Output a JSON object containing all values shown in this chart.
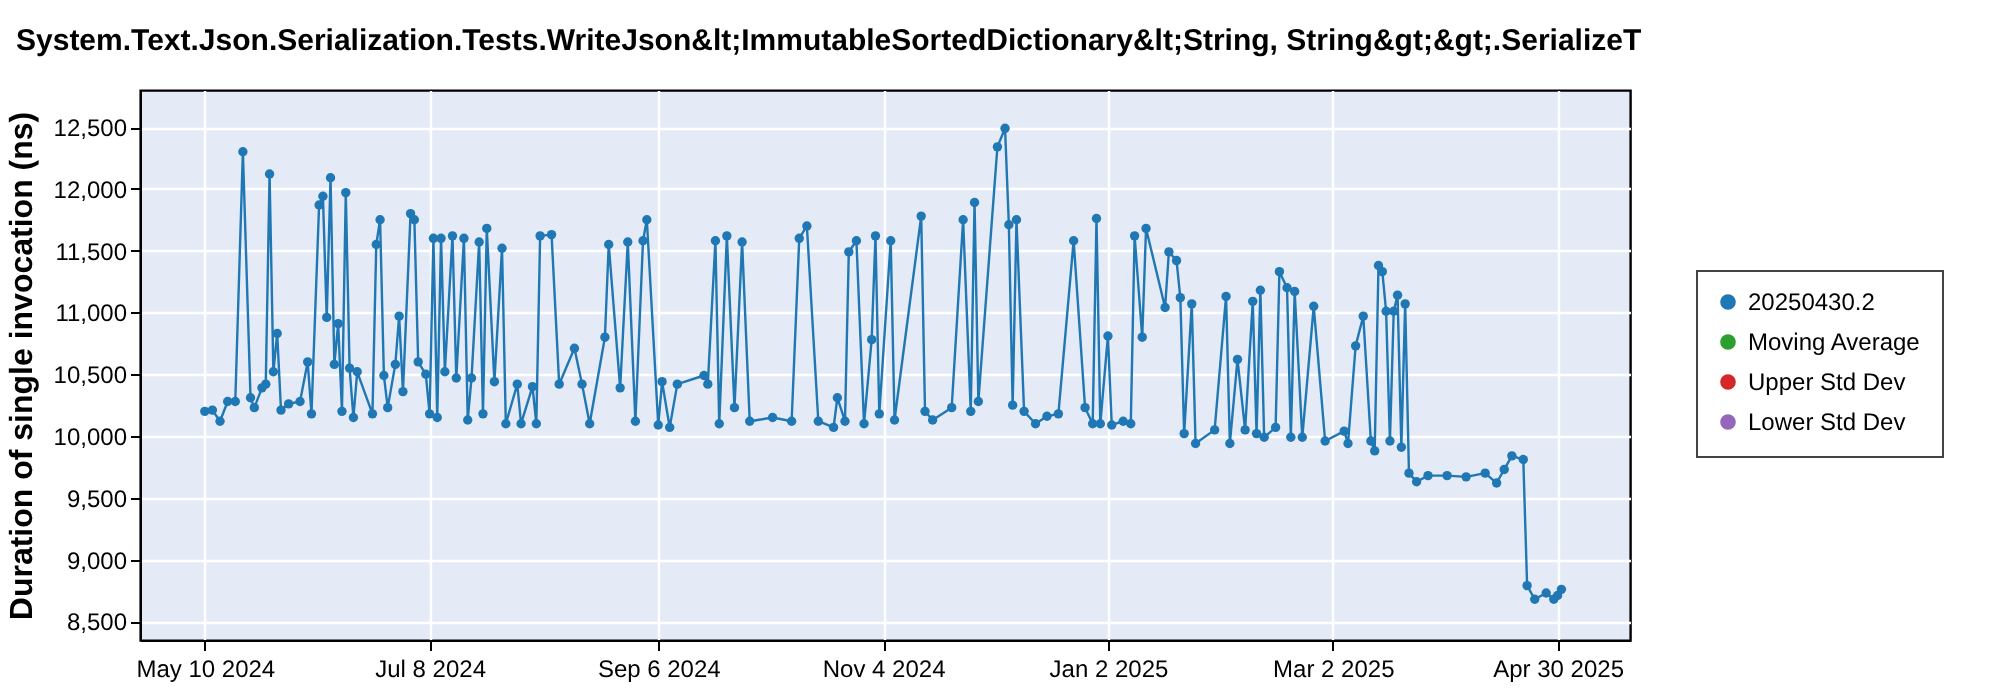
{
  "chart_data": {
    "type": "line",
    "title": "System.Text.Json.Serialization.Tests.WriteJson&lt;ImmutableSortedDictionary&lt;String, String&gt;&gt;.SerializeT",
    "ylabel": "Duration of single invocation (ns)",
    "x": [
      "2024-05-10",
      "2024-05-12",
      "2024-05-14",
      "2024-05-16",
      "2024-05-18",
      "2024-05-20",
      "2024-05-22",
      "2024-05-23",
      "2024-05-25",
      "2024-05-26",
      "2024-05-27",
      "2024-05-28",
      "2024-05-29",
      "2024-05-30",
      "2024-06-01",
      "2024-06-04",
      "2024-06-06",
      "2024-06-07",
      "2024-06-09",
      "2024-06-10",
      "2024-06-11",
      "2024-06-12",
      "2024-06-13",
      "2024-06-14",
      "2024-06-15",
      "2024-06-16",
      "2024-06-17",
      "2024-06-18",
      "2024-06-19",
      "2024-06-23",
      "2024-06-24",
      "2024-06-25",
      "2024-06-26",
      "2024-06-27",
      "2024-06-29",
      "2024-06-30",
      "2024-07-01",
      "2024-07-03",
      "2024-07-04",
      "2024-07-05",
      "2024-07-07",
      "2024-07-08",
      "2024-07-09",
      "2024-07-10",
      "2024-07-11",
      "2024-07-12",
      "2024-07-14",
      "2024-07-15",
      "2024-07-17",
      "2024-07-18",
      "2024-07-19",
      "2024-07-21",
      "2024-07-22",
      "2024-07-23",
      "2024-07-25",
      "2024-07-27",
      "2024-07-28",
      "2024-07-31",
      "2024-08-01",
      "2024-08-04",
      "2024-08-05",
      "2024-08-06",
      "2024-08-09",
      "2024-08-11",
      "2024-08-15",
      "2024-08-17",
      "2024-08-19",
      "2024-08-23",
      "2024-08-24",
      "2024-08-27",
      "2024-08-29",
      "2024-08-31",
      "2024-09-02",
      "2024-09-03",
      "2024-09-06",
      "2024-09-07",
      "2024-09-09",
      "2024-09-11",
      "2024-09-18",
      "2024-09-19",
      "2024-09-21",
      "2024-09-22",
      "2024-09-24",
      "2024-09-26",
      "2024-09-28",
      "2024-09-30",
      "2024-10-06",
      "2024-10-11",
      "2024-10-13",
      "2024-10-15",
      "2024-10-18",
      "2024-10-22",
      "2024-10-23",
      "2024-10-25",
      "2024-10-26",
      "2024-10-28",
      "2024-10-30",
      "2024-11-01",
      "2024-11-02",
      "2024-11-03",
      "2024-11-06",
      "2024-11-07",
      "2024-11-14",
      "2024-11-15",
      "2024-11-17",
      "2024-11-22",
      "2024-11-25",
      "2024-11-27",
      "2024-11-28",
      "2024-11-29",
      "2024-12-04",
      "2024-12-06",
      "2024-12-07",
      "2024-12-08",
      "2024-12-09",
      "2024-12-11",
      "2024-12-14",
      "2024-12-17",
      "2024-12-20",
      "2024-12-24",
      "2024-12-27",
      "2024-12-29",
      "2024-12-30",
      "2024-12-31",
      "2025-01-02",
      "2025-01-03",
      "2025-01-06",
      "2025-01-08",
      "2025-01-09",
      "2025-01-11",
      "2025-01-12",
      "2025-01-17",
      "2025-01-18",
      "2025-01-20",
      "2025-01-21",
      "2025-01-22",
      "2025-01-24",
      "2025-01-25",
      "2025-01-30",
      "2025-02-02",
      "2025-02-03",
      "2025-02-05",
      "2025-02-07",
      "2025-02-09",
      "2025-02-10",
      "2025-02-11",
      "2025-02-12",
      "2025-02-15",
      "2025-02-16",
      "2025-02-18",
      "2025-02-19",
      "2025-02-20",
      "2025-02-22",
      "2025-02-25",
      "2025-02-28",
      "2025-03-05",
      "2025-03-06",
      "2025-03-08",
      "2025-03-10",
      "2025-03-12",
      "2025-03-13",
      "2025-03-14",
      "2025-03-15",
      "2025-03-16",
      "2025-03-17",
      "2025-03-18",
      "2025-03-19",
      "2025-03-20",
      "2025-03-21",
      "2025-03-22",
      "2025-03-24",
      "2025-03-27",
      "2025-04-01",
      "2025-04-06",
      "2025-04-11",
      "2025-04-14",
      "2025-04-16",
      "2025-04-18",
      "2025-04-21",
      "2025-04-22",
      "2025-04-24",
      "2025-04-27",
      "2025-04-29",
      "2025-04-30",
      "2025-05-01"
    ],
    "series": [
      {
        "name": "20250430.2",
        "color": "#1f77b4",
        "values": [
          10200,
          10210,
          10120,
          10280,
          10280,
          12300,
          10310,
          10230,
          10390,
          10420,
          12120,
          10520,
          10830,
          10210,
          10260,
          10280,
          10600,
          10180,
          11870,
          11940,
          10960,
          12090,
          10580,
          10910,
          10200,
          11970,
          10550,
          10150,
          10520,
          10180,
          11550,
          11750,
          10490,
          10230,
          10580,
          10970,
          10360,
          11800,
          11750,
          10600,
          10500,
          10180,
          11600,
          10150,
          11600,
          10520,
          11620,
          10470,
          11600,
          10130,
          10470,
          11570,
          10180,
          11680,
          10440,
          11520,
          10100,
          10420,
          10100,
          10400,
          10100,
          11620,
          11630,
          10420,
          10710,
          10420,
          10100,
          10800,
          11550,
          10390,
          11570,
          10120,
          11580,
          11750,
          10090,
          10440,
          10070,
          10420,
          10490,
          10420,
          11580,
          10100,
          11620,
          10230,
          11570,
          10120,
          10150,
          10120,
          11600,
          11700,
          10120,
          10070,
          10310,
          10120,
          11490,
          11580,
          10100,
          10780,
          11620,
          10180,
          11580,
          10130,
          11780,
          10200,
          10130,
          10230,
          11750,
          10200,
          11890,
          10280,
          12340,
          12490,
          11710,
          10250,
          11750,
          10200,
          10100,
          10160,
          10180,
          11580,
          10230,
          10100,
          11760,
          10100,
          10810,
          10090,
          10120,
          10100,
          11620,
          10800,
          11680,
          11040,
          11490,
          11420,
          11120,
          10020,
          11070,
          9940,
          10050,
          11130,
          9940,
          10620,
          10050,
          11090,
          10020,
          11180,
          9990,
          10070,
          11330,
          11200,
          9990,
          11170,
          9990,
          11050,
          9960,
          10040,
          9940,
          10730,
          10970,
          9960,
          9880,
          11380,
          11330,
          11010,
          9960,
          11010,
          11140,
          9910,
          11070,
          9700,
          9630,
          9680,
          9680,
          9670,
          9700,
          9620,
          9730,
          9840,
          9810,
          8790,
          8680,
          8730,
          8680,
          8710,
          8760
        ]
      },
      {
        "name": "Moving Average",
        "color": "#2ca02c",
        "values": [
          null,
          null,
          null,
          null,
          null,
          null,
          null,
          null,
          null,
          null,
          null,
          null,
          null,
          null,
          null,
          null,
          null,
          null,
          null,
          null,
          null,
          null,
          null,
          null,
          null,
          null,
          null,
          null,
          null,
          null,
          null,
          null,
          null,
          null,
          null,
          null,
          null,
          null,
          null,
          null,
          null,
          null,
          null,
          null,
          null,
          null,
          null,
          null,
          null,
          null,
          null,
          null,
          null,
          null,
          null,
          null,
          null,
          null,
          null,
          null,
          null,
          null,
          null,
          null,
          null,
          null,
          null,
          null,
          null,
          null,
          null,
          null,
          null,
          null,
          null,
          null,
          null,
          null,
          null,
          null,
          null,
          null,
          null,
          null,
          null,
          null,
          null,
          null,
          null,
          null,
          null,
          null,
          null,
          null,
          null,
          null,
          null,
          null,
          null,
          null,
          null,
          null,
          null,
          null,
          null,
          null,
          null,
          null,
          null,
          null,
          null,
          null,
          null,
          null,
          null,
          null,
          null,
          null,
          null,
          null,
          null,
          null,
          null,
          null,
          null,
          null,
          null,
          null,
          null,
          null,
          null,
          null,
          null,
          null,
          null,
          null,
          null,
          null,
          null,
          null,
          null,
          null,
          null,
          null,
          null,
          null,
          null,
          null,
          null,
          null,
          null,
          null,
          null,
          null,
          null,
          null,
          null,
          null,
          null,
          null,
          null,
          null,
          null,
          null,
          null,
          null,
          null,
          null,
          null,
          null,
          null,
          null,
          null,
          null,
          null,
          null,
          null,
          null,
          null,
          null,
          null,
          null,
          null,
          null,
          null
        ]
      },
      {
        "name": "Upper Std Dev",
        "color": "#d62728",
        "values": [
          null,
          null,
          null,
          null,
          null,
          null,
          null,
          null,
          null,
          null,
          null,
          null,
          null,
          null,
          null,
          null,
          null,
          null,
          null,
          null,
          null,
          null,
          null,
          null,
          null,
          null,
          null,
          null,
          null,
          null,
          null,
          null,
          null,
          null,
          null,
          null,
          null,
          null,
          null,
          null,
          null,
          null,
          null,
          null,
          null,
          null,
          null,
          null,
          null,
          null,
          null,
          null,
          null,
          null,
          null,
          null,
          null,
          null,
          null,
          null,
          null,
          null,
          null,
          null,
          null,
          null,
          null,
          null,
          null,
          null,
          null,
          null,
          null,
          null,
          null,
          null,
          null,
          null,
          null,
          null,
          null,
          null,
          null,
          null,
          null,
          null,
          null,
          null,
          null,
          null,
          null,
          null,
          null,
          null,
          null,
          null,
          null,
          null,
          null,
          null,
          null,
          null,
          null,
          null,
          null,
          null,
          null,
          null,
          null,
          null,
          null,
          null,
          null,
          null,
          null,
          null,
          null,
          null,
          null,
          null,
          null,
          null,
          null,
          null,
          null,
          null,
          null,
          null,
          null,
          null,
          null,
          null,
          null,
          null,
          null,
          null,
          null,
          null,
          null,
          null,
          null,
          null,
          null,
          null,
          null,
          null,
          null,
          null,
          null,
          null,
          null,
          null,
          null,
          null,
          null,
          null,
          null,
          null,
          null,
          null,
          null,
          null,
          null,
          null,
          null,
          null,
          null,
          null,
          null,
          null,
          null,
          null,
          null,
          null,
          null,
          null,
          null,
          null,
          null,
          null,
          null,
          null,
          null,
          null,
          null
        ]
      },
      {
        "name": "Lower Std Dev",
        "color": "#9467bd",
        "values": [
          null,
          null,
          null,
          null,
          null,
          null,
          null,
          null,
          null,
          null,
          null,
          null,
          null,
          null,
          null,
          null,
          null,
          null,
          null,
          null,
          null,
          null,
          null,
          null,
          null,
          null,
          null,
          null,
          null,
          null,
          null,
          null,
          null,
          null,
          null,
          null,
          null,
          null,
          null,
          null,
          null,
          null,
          null,
          null,
          null,
          null,
          null,
          null,
          null,
          null,
          null,
          null,
          null,
          null,
          null,
          null,
          null,
          null,
          null,
          null,
          null,
          null,
          null,
          null,
          null,
          null,
          null,
          null,
          null,
          null,
          null,
          null,
          null,
          null,
          null,
          null,
          null,
          null,
          null,
          null,
          null,
          null,
          null,
          null,
          null,
          null,
          null,
          null,
          null,
          null,
          null,
          null,
          null,
          null,
          null,
          null,
          null,
          null,
          null,
          null,
          null,
          null,
          null,
          null,
          null,
          null,
          null,
          null,
          null,
          null,
          null,
          null,
          null,
          null,
          null,
          null,
          null,
          null,
          null,
          null,
          null,
          null,
          null,
          null,
          null,
          null,
          null,
          null,
          null,
          null,
          null,
          null,
          null,
          null,
          null,
          null,
          null,
          null,
          null,
          null,
          null,
          null,
          null,
          null,
          null,
          null,
          null,
          null,
          null,
          null,
          null,
          null,
          null,
          null,
          null,
          null,
          null,
          null,
          null,
          null,
          null,
          null,
          null,
          null,
          null,
          null,
          null,
          null,
          null,
          null,
          null,
          null,
          null,
          null,
          null,
          null,
          null,
          null,
          null,
          null,
          null,
          null,
          null,
          null,
          null
        ]
      }
    ],
    "xlim": [
      "2024-04-23",
      "2025-05-19"
    ],
    "xticks": [
      {
        "value": "2024-05-10",
        "label": "May 10 2024"
      },
      {
        "value": "2024-07-08",
        "label": "Jul 8 2024"
      },
      {
        "value": "2024-09-06",
        "label": "Sep 6 2024"
      },
      {
        "value": "2024-11-04",
        "label": "Nov 4 2024"
      },
      {
        "value": "2025-01-02",
        "label": "Jan 2 2025"
      },
      {
        "value": "2025-03-02",
        "label": "Mar 2 2025"
      },
      {
        "value": "2025-04-30",
        "label": "Apr 30 2025"
      }
    ],
    "ylim": [
      8350,
      12800
    ],
    "yticks": [
      {
        "value": 8500,
        "label": "8,500"
      },
      {
        "value": 9000,
        "label": "9,000"
      },
      {
        "value": 9500,
        "label": "9,500"
      },
      {
        "value": 10000,
        "label": "10,000"
      },
      {
        "value": 10500,
        "label": "10,500"
      },
      {
        "value": 11000,
        "label": "11,000"
      },
      {
        "value": 11500,
        "label": "11,500"
      },
      {
        "value": 12000,
        "label": "12,000"
      },
      {
        "value": 12500,
        "label": "12,500"
      }
    ],
    "grid": true,
    "legend": "right",
    "marker": "circle",
    "line_style": "solid"
  }
}
